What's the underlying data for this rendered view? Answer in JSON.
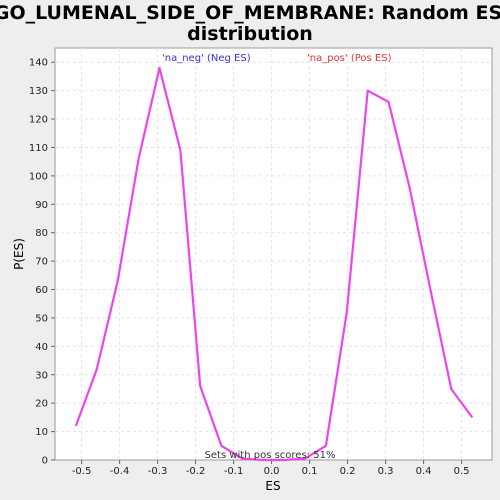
{
  "chart_data": {
    "type": "line",
    "title_lines": [
      "GO_LUMENAL_SIDE_OF_MEMBRANE: Random ES",
      "distribution"
    ],
    "xlabel": "ES",
    "ylabel": "P(ES)",
    "xlim": [
      -0.57,
      0.58
    ],
    "ylim": [
      0,
      145
    ],
    "xticks": [
      -0.5,
      -0.4,
      -0.3,
      -0.2,
      -0.1,
      0.0,
      0.1,
      0.2,
      0.3,
      0.4,
      0.5
    ],
    "xtick_labels": [
      "-0.5",
      "-0.4",
      "-0.3",
      "-0.2",
      "-0.1",
      "0.0",
      "0.1",
      "0.2",
      "0.3",
      "0.4",
      "0.5"
    ],
    "yticks": [
      0,
      10,
      20,
      30,
      40,
      50,
      60,
      70,
      80,
      90,
      100,
      110,
      120,
      130,
      140
    ],
    "grid": true,
    "line_color": "#ee44ee",
    "series": [
      {
        "x": [
          -0.515,
          -0.46,
          -0.405,
          -0.35,
          -0.295,
          -0.24,
          -0.188,
          -0.132,
          -0.077,
          -0.022,
          0.033,
          0.088,
          0.143,
          0.198,
          0.253,
          0.308,
          0.363,
          0.418,
          0.473,
          0.528
        ],
        "y": [
          12,
          32,
          63,
          106,
          138,
          109,
          26,
          5,
          0.5,
          0,
          0,
          0.5,
          5,
          52,
          130,
          126,
          96,
          60,
          25,
          15
        ]
      }
    ],
    "legend": [
      {
        "label": "'na_neg' (Neg ES)",
        "color": "#3333cc",
        "position": "top-left"
      },
      {
        "label": "'na_pos' (Pos ES)",
        "color": "#dd3333",
        "position": "top-right"
      }
    ],
    "annotation": "Sets with pos scores: 51%"
  }
}
